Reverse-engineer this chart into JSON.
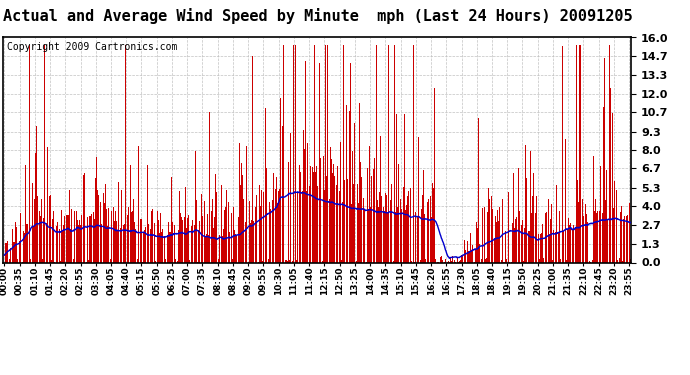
{
  "title": "Actual and Average Wind Speed by Minute  mph (Last 24 Hours) 20091205",
  "copyright": "Copyright 2009 Cartronics.com",
  "yticks": [
    0.0,
    1.3,
    2.7,
    4.0,
    5.3,
    6.7,
    8.0,
    9.3,
    10.7,
    12.0,
    13.3,
    14.7,
    16.0
  ],
  "ymax": 16.0,
  "ymin": 0.0,
  "bar_color": "#cc0000",
  "line_color": "#0000cc",
  "background_color": "#ffffff",
  "grid_color": "#bbbbbb",
  "title_fontsize": 11,
  "copyright_fontsize": 7,
  "num_minutes": 1440,
  "seed": 12345
}
